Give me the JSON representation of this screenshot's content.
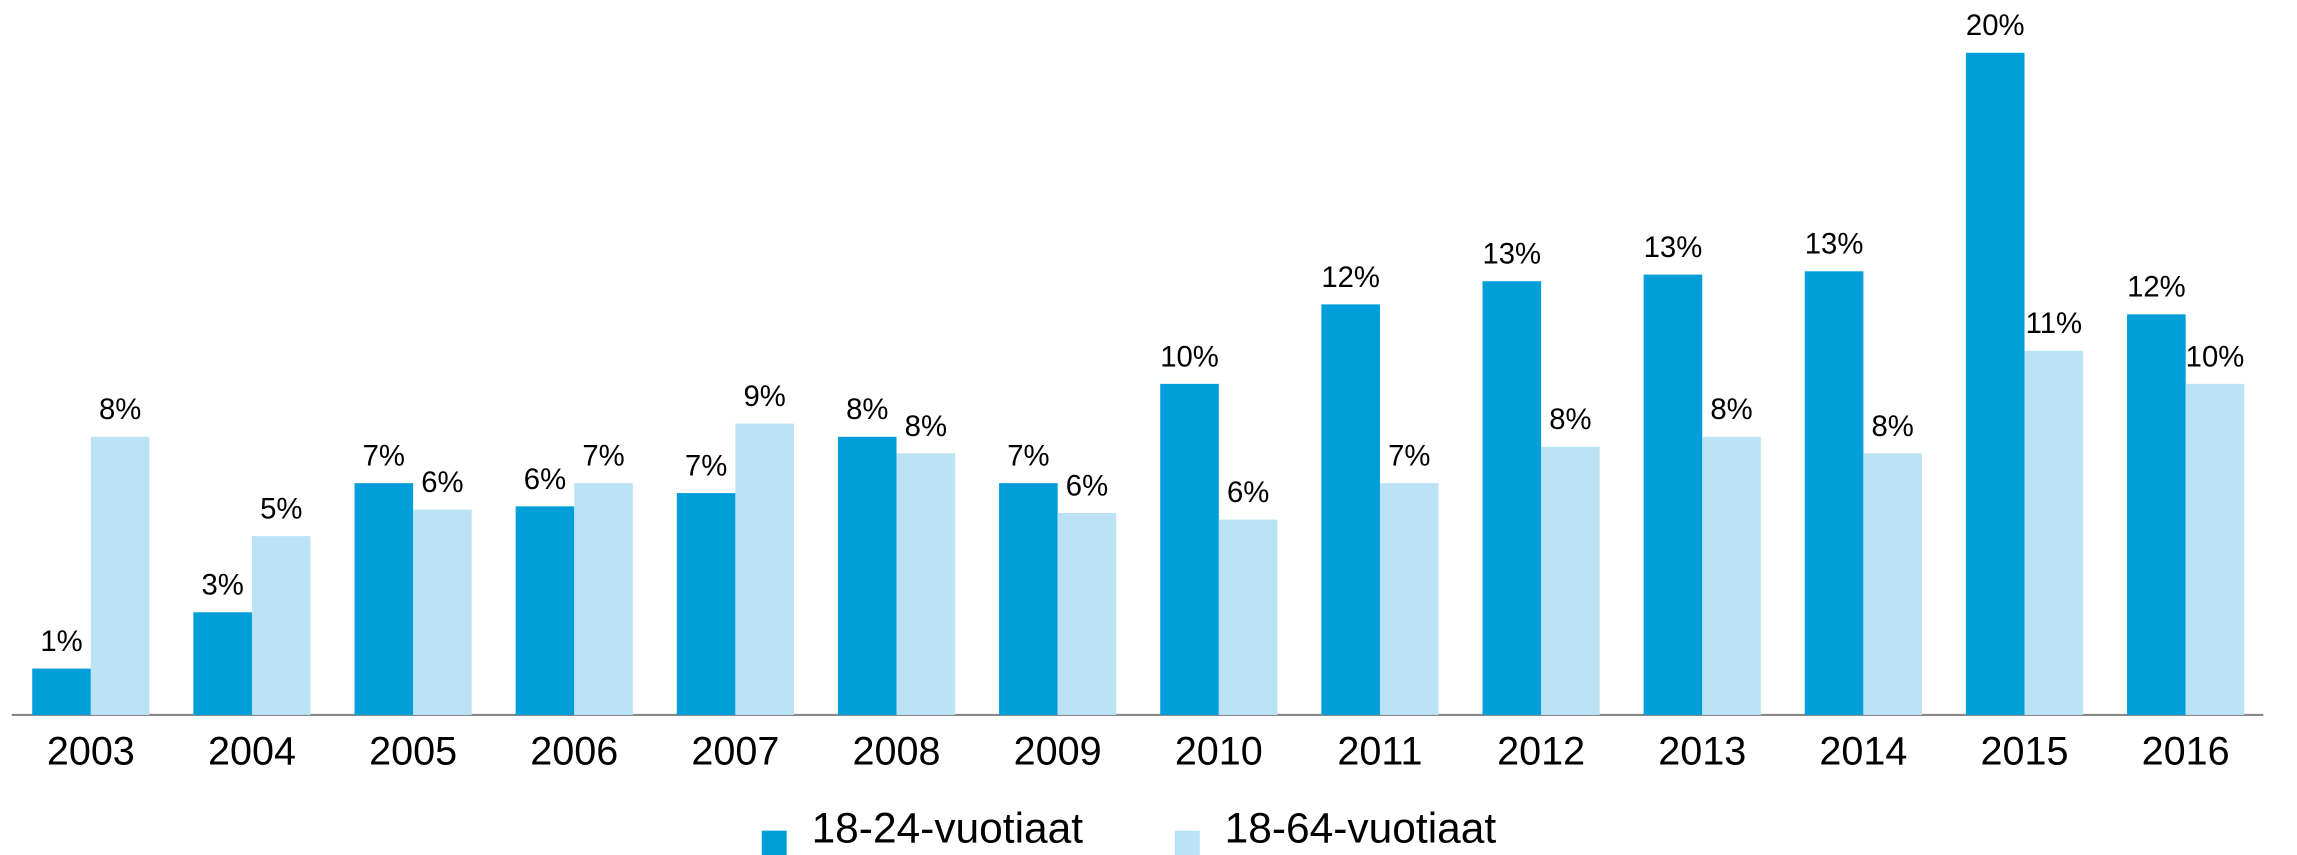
{
  "chart_data": {
    "type": "bar",
    "categories": [
      "2003",
      "2004",
      "2005",
      "2006",
      "2007",
      "2008",
      "2009",
      "2010",
      "2011",
      "2012",
      "2013",
      "2014",
      "2015",
      "2016"
    ],
    "series": [
      {
        "name": "18-24-vuotiaat",
        "color": "#009fda",
        "values": [
          1.4,
          3.1,
          7.0,
          6.3,
          6.7,
          8.4,
          7.0,
          10.0,
          12.4,
          13.1,
          13.3,
          13.4,
          20.0,
          12.1
        ],
        "value_labels": [
          "1%",
          "3%",
          "7%",
          "6%",
          "7%",
          "8%",
          "7%",
          "10%",
          "12%",
          "13%",
          "13%",
          "13%",
          "20%",
          "12%"
        ]
      },
      {
        "name": "18-64-vuotiaat",
        "color": "#bce3f5",
        "values": [
          8.4,
          5.4,
          6.2,
          7.0,
          8.8,
          7.9,
          6.1,
          5.9,
          7.0,
          8.1,
          8.4,
          7.9,
          11.0,
          10.0
        ],
        "value_labels": [
          "8%",
          "5%",
          "6%",
          "7%",
          "9%",
          "8%",
          "6%",
          "6%",
          "7%",
          "8%",
          "8%",
          "8%",
          "11%",
          "10%"
        ]
      }
    ]
  }
}
